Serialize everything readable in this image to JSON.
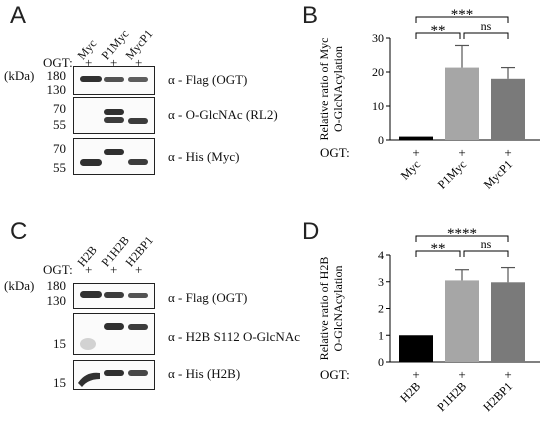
{
  "panels": {
    "A": {
      "letter": "A",
      "lanes": [
        "Myc",
        "P1Myc",
        "MycP1"
      ],
      "ogt_label": "OGT:",
      "plus": "+",
      "kda_label": "(kDa)",
      "blots": [
        {
          "markers": [
            "180",
            "130"
          ],
          "label": "α - Flag (OGT)"
        },
        {
          "markers": [
            "70",
            "55"
          ],
          "label": "α - O-GlcNAc (RL2)"
        },
        {
          "markers": [
            "70",
            "55"
          ],
          "label": "α - His (Myc)"
        }
      ]
    },
    "C": {
      "letter": "C",
      "lanes": [
        "H2B",
        "P1H2B",
        "H2BP1"
      ],
      "ogt_label": "OGT:",
      "plus": "+",
      "kda_label": "(kDa)",
      "blots": [
        {
          "markers": [
            "180",
            "130"
          ],
          "label": "α - Flag (OGT)"
        },
        {
          "markers": [
            "15"
          ],
          "label": "α - H2B S112 O-GlcNAc"
        },
        {
          "markers": [
            "15"
          ],
          "label": "α - His (H2B)"
        }
      ]
    }
  },
  "chart_data": [
    {
      "panel": "B",
      "type": "bar",
      "categories": [
        "Myc",
        "P1Myc",
        "MycP1"
      ],
      "values": [
        1.0,
        21.3,
        18.0
      ],
      "errors": [
        0.0,
        6.5,
        3.3
      ],
      "colors": [
        "#000000",
        "#a6a6a6",
        "#7a7a7a"
      ],
      "ylabel": "Relative ratio of Myc O-GlcNAcylation",
      "ylim": [
        0,
        30
      ],
      "yticks": [
        "0",
        "10",
        "20",
        "30"
      ],
      "ogt_label": "OGT:",
      "plus": "+",
      "significance": [
        {
          "pair": [
            0,
            1
          ],
          "label": "**"
        },
        {
          "pair": [
            0,
            2
          ],
          "label": "***"
        },
        {
          "pair": [
            1,
            2
          ],
          "label": "ns"
        }
      ]
    },
    {
      "panel": "D",
      "type": "bar",
      "categories": [
        "H2B",
        "P1H2B",
        "H2BP1"
      ],
      "values": [
        1.0,
        3.05,
        2.98
      ],
      "errors": [
        0.0,
        0.4,
        0.55
      ],
      "colors": [
        "#000000",
        "#a6a6a6",
        "#7a7a7a"
      ],
      "ylabel": "Relative ratio of H2B O-GlcNAcylation",
      "ylim": [
        0,
        4
      ],
      "yticks": [
        "0",
        "1",
        "2",
        "3",
        "4"
      ],
      "ogt_label": "OGT:",
      "plus": "+",
      "significance": [
        {
          "pair": [
            0,
            1
          ],
          "label": "**"
        },
        {
          "pair": [
            0,
            2
          ],
          "label": "****"
        },
        {
          "pair": [
            1,
            2
          ],
          "label": "ns"
        }
      ]
    }
  ],
  "letters": {
    "B": "B",
    "D": "D"
  },
  "colors": {
    "bands": "#1a1a1a",
    "frame": "#222222"
  }
}
